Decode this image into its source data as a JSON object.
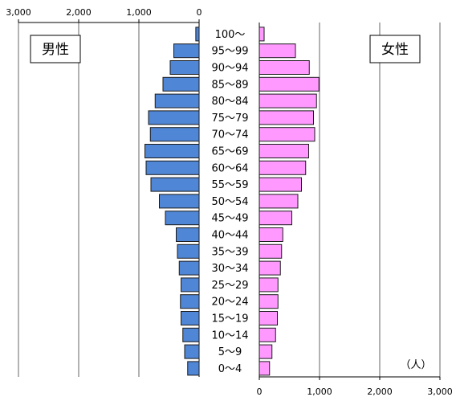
{
  "chart_data": {
    "type": "bar",
    "subtype": "population-pyramid",
    "orientation": "horizontal",
    "categories": [
      "100～",
      "95～99",
      "90～94",
      "85～89",
      "80～84",
      "75～79",
      "70～74",
      "65～69",
      "60～64",
      "55～59",
      "50～54",
      "45～49",
      "40～44",
      "35～39",
      "30～34",
      "25～29",
      "20～24",
      "15～19",
      "10～14",
      "5～9",
      "0～4"
    ],
    "series": [
      {
        "name": "男性",
        "side": "left",
        "color": "#4f86d6",
        "values": [
          55,
          420,
          480,
          600,
          730,
          840,
          810,
          900,
          880,
          800,
          660,
          560,
          380,
          360,
          330,
          300,
          310,
          300,
          270,
          240,
          190
        ]
      },
      {
        "name": "女性",
        "side": "right",
        "color": "#ff99ff",
        "values": [
          80,
          600,
          830,
          990,
          950,
          900,
          920,
          820,
          770,
          700,
          640,
          540,
          390,
          370,
          350,
          310,
          310,
          300,
          270,
          210,
          170
        ]
      }
    ],
    "xlim": [
      0,
      3000
    ],
    "left_ticks": [
      "3,000",
      "2,000",
      "1,000",
      "0"
    ],
    "right_ticks": [
      "0",
      "1,000",
      "2,000",
      "3,000"
    ],
    "unit": "（人）",
    "grid": true,
    "legend": {
      "male": "男性",
      "female": "女性"
    }
  }
}
